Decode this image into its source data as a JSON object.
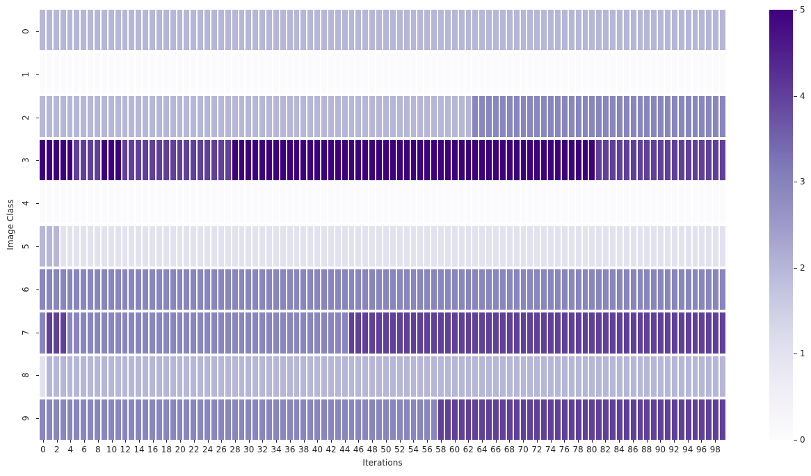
{
  "chart_data": {
    "type": "heatmap",
    "xlabel": "Iterations",
    "ylabel": "Image Class",
    "x_tick_labels": [
      "0",
      "2",
      "4",
      "6",
      "8",
      "10",
      "12",
      "14",
      "16",
      "18",
      "20",
      "22",
      "24",
      "26",
      "28",
      "30",
      "32",
      "34",
      "36",
      "38",
      "40",
      "42",
      "44",
      "46",
      "48",
      "50",
      "52",
      "54",
      "56",
      "58",
      "60",
      "62",
      "64",
      "66",
      "68",
      "70",
      "72",
      "74",
      "76",
      "78",
      "80",
      "82",
      "84",
      "86",
      "88",
      "90",
      "92",
      "94",
      "96",
      "98"
    ],
    "x_tick_step": 2,
    "y_tick_labels": [
      "0",
      "1",
      "2",
      "3",
      "4",
      "5",
      "6",
      "7",
      "8",
      "9"
    ],
    "vmin": 0,
    "vmax": 5,
    "colorbar_ticks": [
      "0",
      "1",
      "2",
      "3",
      "4",
      "5"
    ],
    "legend_position": "right-colorbar",
    "grid": "white-cell-borders",
    "colormap": {
      "name": "Purples",
      "stops": [
        "#fcfbfd",
        "#efedf5",
        "#dadaeb",
        "#bcbddc",
        "#9e9ac8",
        "#807dba",
        "#6a51a3",
        "#54278f",
        "#3f007d"
      ]
    },
    "value_colors": {
      "0": "#fbfafc",
      "1": "#e2e2ef",
      "2": "#b6b6d8",
      "3": "#8885bf",
      "4": "#60409a",
      "5": "#3f007d"
    },
    "rows": [
      {
        "label": "0",
        "values": [
          2,
          2,
          2,
          2,
          2,
          2,
          2,
          2,
          2,
          2,
          2,
          2,
          2,
          2,
          2,
          2,
          2,
          2,
          2,
          2,
          2,
          2,
          2,
          2,
          2,
          2,
          2,
          2,
          2,
          2,
          2,
          2,
          2,
          2,
          2,
          2,
          2,
          2,
          2,
          2,
          2,
          2,
          2,
          2,
          2,
          2,
          2,
          2,
          2,
          2,
          2,
          2,
          2,
          2,
          2,
          2,
          2,
          2,
          2,
          2,
          2,
          2,
          2,
          2,
          2,
          2,
          2,
          2,
          2,
          2,
          2,
          2,
          2,
          2,
          2,
          2,
          2,
          2,
          2,
          2,
          2,
          2,
          2,
          2,
          2,
          2,
          2,
          2,
          2,
          2,
          2,
          2,
          2,
          2,
          2,
          2,
          2,
          2,
          2,
          2
        ]
      },
      {
        "label": "1",
        "values": [
          0,
          0,
          0,
          0,
          0,
          0,
          0,
          0,
          0,
          0,
          0,
          0,
          0,
          0,
          0,
          0,
          0,
          0,
          0,
          0,
          0,
          0,
          0,
          0,
          0,
          0,
          0,
          0,
          0,
          0,
          0,
          0,
          0,
          0,
          0,
          0,
          0,
          0,
          0,
          0,
          0,
          0,
          0,
          0,
          0,
          0,
          0,
          0,
          0,
          0,
          0,
          0,
          0,
          0,
          0,
          0,
          0,
          0,
          0,
          0,
          0,
          0,
          0,
          0,
          0,
          0,
          0,
          0,
          0,
          0,
          0,
          0,
          0,
          0,
          0,
          0,
          0,
          0,
          0,
          0,
          0,
          0,
          0,
          0,
          0,
          0,
          0,
          0,
          0,
          0,
          0,
          0,
          0,
          0,
          0,
          0,
          0,
          0,
          0,
          0
        ]
      },
      {
        "label": "2",
        "values": [
          2,
          2,
          2,
          2,
          2,
          2,
          2,
          2,
          2,
          2,
          2,
          2,
          2,
          2,
          2,
          2,
          2,
          2,
          2,
          2,
          2,
          2,
          2,
          2,
          2,
          2,
          2,
          2,
          2,
          2,
          2,
          2,
          2,
          2,
          2,
          2,
          2,
          2,
          2,
          2,
          2,
          2,
          2,
          2,
          2,
          2,
          2,
          2,
          2,
          2,
          2,
          2,
          2,
          2,
          2,
          2,
          2,
          2,
          2,
          2,
          2,
          2,
          2,
          3,
          3,
          3,
          3,
          3,
          3,
          3,
          3,
          3,
          3,
          3,
          3,
          3,
          3,
          3,
          3,
          3,
          3,
          3,
          3,
          3,
          3,
          3,
          3,
          3,
          3,
          3,
          3,
          3,
          3,
          3,
          3,
          3,
          3,
          3,
          3,
          3
        ]
      },
      {
        "label": "3",
        "values": [
          5,
          5,
          5,
          5,
          5,
          4,
          4,
          4,
          4,
          5,
          5,
          5,
          4,
          4,
          4,
          4,
          4,
          4,
          4,
          4,
          4,
          4,
          4,
          4,
          4,
          4,
          4,
          4,
          5,
          5,
          5,
          5,
          5,
          5,
          5,
          5,
          5,
          5,
          5,
          5,
          5,
          5,
          5,
          5,
          5,
          5,
          5,
          5,
          5,
          5,
          5,
          5,
          5,
          5,
          5,
          5,
          5,
          5,
          5,
          5,
          5,
          5,
          5,
          5,
          5,
          5,
          5,
          5,
          5,
          5,
          5,
          5,
          5,
          5,
          5,
          5,
          5,
          5,
          5,
          5,
          5,
          4,
          4,
          4,
          4,
          4,
          4,
          4,
          4,
          4,
          4,
          4,
          4,
          4,
          4,
          4,
          4,
          4,
          4,
          4
        ]
      },
      {
        "label": "4",
        "values": [
          0,
          0,
          0,
          0,
          0,
          0,
          0,
          0,
          0,
          0,
          0,
          0,
          0,
          0,
          0,
          0,
          0,
          0,
          0,
          0,
          0,
          0,
          0,
          0,
          0,
          0,
          0,
          0,
          0,
          0,
          0,
          0,
          0,
          0,
          0,
          0,
          0,
          0,
          0,
          0,
          0,
          0,
          0,
          0,
          0,
          0,
          0,
          0,
          0,
          0,
          0,
          0,
          0,
          0,
          0,
          0,
          0,
          0,
          0,
          0,
          0,
          0,
          0,
          0,
          0,
          0,
          0,
          0,
          0,
          0,
          0,
          0,
          0,
          0,
          0,
          0,
          0,
          0,
          0,
          0,
          0,
          0,
          0,
          0,
          0,
          0,
          0,
          0,
          0,
          0,
          0,
          0,
          0,
          0,
          0,
          0,
          0,
          0,
          0,
          0
        ]
      },
      {
        "label": "5",
        "values": [
          2,
          2,
          2,
          1,
          1,
          1,
          1,
          1,
          1,
          1,
          1,
          1,
          1,
          1,
          1,
          1,
          1,
          1,
          1,
          1,
          1,
          1,
          1,
          1,
          1,
          1,
          1,
          1,
          1,
          1,
          1,
          1,
          1,
          1,
          1,
          1,
          1,
          1,
          1,
          1,
          1,
          1,
          1,
          1,
          1,
          1,
          1,
          1,
          1,
          1,
          1,
          1,
          1,
          1,
          1,
          1,
          1,
          1,
          1,
          1,
          1,
          1,
          1,
          1,
          1,
          1,
          1,
          1,
          1,
          1,
          1,
          1,
          1,
          1,
          1,
          1,
          1,
          1,
          1,
          1,
          1,
          1,
          1,
          1,
          1,
          1,
          1,
          1,
          1,
          1,
          1,
          1,
          1,
          1,
          1,
          1,
          1,
          1,
          1,
          1
        ]
      },
      {
        "label": "6",
        "values": [
          3,
          3,
          3,
          3,
          3,
          3,
          3,
          3,
          3,
          3,
          3,
          3,
          3,
          3,
          3,
          3,
          3,
          3,
          3,
          3,
          3,
          3,
          3,
          3,
          3,
          3,
          3,
          3,
          3,
          3,
          3,
          3,
          3,
          3,
          3,
          3,
          3,
          3,
          3,
          3,
          3,
          3,
          3,
          3,
          3,
          3,
          3,
          3,
          3,
          3,
          3,
          3,
          3,
          3,
          3,
          3,
          3,
          3,
          3,
          3,
          3,
          3,
          3,
          3,
          3,
          3,
          3,
          3,
          3,
          3,
          3,
          3,
          3,
          3,
          3,
          3,
          3,
          3,
          3,
          3,
          3,
          3,
          3,
          3,
          3,
          3,
          3,
          3,
          3,
          3,
          3,
          3,
          3,
          3,
          3,
          3,
          3,
          3,
          3,
          3
        ]
      },
      {
        "label": "7",
        "values": [
          3,
          4,
          4,
          4,
          3,
          3,
          3,
          3,
          3,
          3,
          3,
          3,
          3,
          3,
          3,
          3,
          3,
          3,
          3,
          3,
          3,
          3,
          3,
          3,
          3,
          3,
          3,
          3,
          3,
          3,
          3,
          3,
          3,
          3,
          3,
          3,
          3,
          3,
          3,
          3,
          3,
          3,
          3,
          3,
          3,
          4,
          4,
          4,
          4,
          4,
          4,
          4,
          4,
          4,
          4,
          4,
          4,
          4,
          4,
          4,
          4,
          4,
          4,
          4,
          4,
          4,
          4,
          4,
          4,
          4,
          4,
          4,
          4,
          4,
          4,
          4,
          4,
          4,
          4,
          4,
          4,
          4,
          4,
          4,
          4,
          4,
          4,
          4,
          4,
          4,
          4,
          4,
          4,
          4,
          4,
          4,
          4,
          4,
          4,
          4
        ]
      },
      {
        "label": "8",
        "values": [
          1,
          2,
          2,
          2,
          2,
          2,
          2,
          2,
          2,
          2,
          2,
          2,
          2,
          2,
          2,
          2,
          2,
          2,
          2,
          2,
          2,
          2,
          2,
          2,
          2,
          2,
          2,
          2,
          2,
          2,
          2,
          2,
          2,
          2,
          2,
          2,
          2,
          2,
          2,
          2,
          2,
          2,
          2,
          2,
          2,
          2,
          2,
          2,
          2,
          2,
          2,
          2,
          2,
          2,
          2,
          2,
          2,
          2,
          2,
          2,
          2,
          2,
          2,
          2,
          2,
          2,
          2,
          2,
          2,
          2,
          2,
          2,
          2,
          2,
          2,
          2,
          2,
          2,
          2,
          2,
          2,
          2,
          2,
          2,
          2,
          2,
          2,
          2,
          2,
          2,
          2,
          2,
          2,
          2,
          2,
          2,
          2,
          2,
          2,
          2
        ]
      },
      {
        "label": "9",
        "values": [
          3,
          3,
          3,
          3,
          3,
          3,
          3,
          3,
          3,
          3,
          3,
          3,
          3,
          3,
          3,
          3,
          3,
          3,
          3,
          3,
          3,
          3,
          3,
          3,
          3,
          3,
          3,
          3,
          3,
          3,
          3,
          3,
          3,
          3,
          3,
          3,
          3,
          3,
          3,
          3,
          3,
          3,
          3,
          3,
          3,
          3,
          3,
          3,
          3,
          3,
          3,
          3,
          3,
          3,
          3,
          3,
          3,
          3,
          4,
          4,
          4,
          4,
          4,
          4,
          4,
          4,
          4,
          4,
          4,
          4,
          4,
          4,
          4,
          4,
          4,
          4,
          4,
          4,
          4,
          4,
          4,
          4,
          4,
          4,
          4,
          4,
          4,
          4,
          4,
          4,
          4,
          4,
          4,
          4,
          4,
          4,
          4,
          4,
          4,
          4
        ]
      }
    ]
  }
}
